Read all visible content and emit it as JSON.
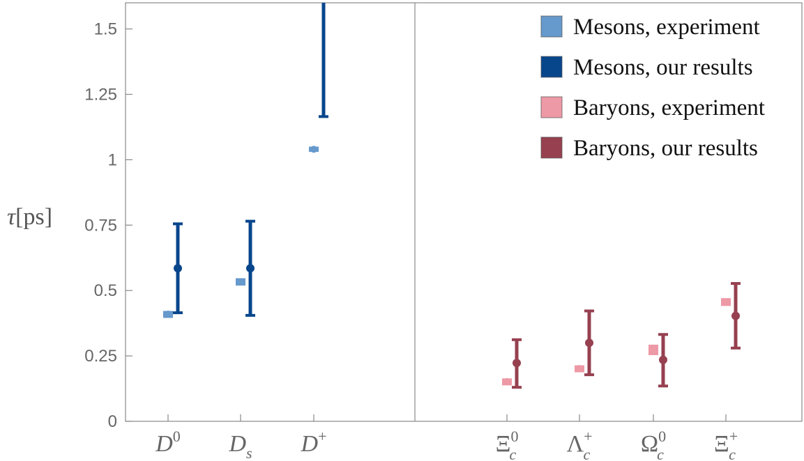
{
  "chart_data": {
    "type": "scatter",
    "ylabel_symbol": "τ",
    "ylabel_unit": "[ps]",
    "ylim": [
      0,
      1.6
    ],
    "yticks": [
      0,
      0.25,
      0.5,
      0.75,
      1,
      1.25,
      1.5
    ],
    "ytick_labels": [
      "0",
      "0.25",
      "0.5",
      "0.75",
      "1",
      "1.25",
      "1.5"
    ],
    "grid": false,
    "legend_position": "top-right",
    "colors": {
      "meson_exp": "#6699cc",
      "meson_ours": "#08468c",
      "baryon_exp": "#ee99a6",
      "baryon_ours": "#964050"
    },
    "categories": [
      {
        "base": "D",
        "sup": "0",
        "sub": "",
        "group": "mesons"
      },
      {
        "base": "D",
        "sup": "",
        "sub": "s",
        "group": "mesons"
      },
      {
        "base": "D",
        "sup": "+",
        "sub": "",
        "group": "mesons"
      },
      {
        "base": "Ξ",
        "sup": "0",
        "sub": "c",
        "group": "baryons"
      },
      {
        "base": "Λ",
        "sup": "+",
        "sub": "c",
        "group": "baryons"
      },
      {
        "base": "Ω",
        "sup": "0",
        "sub": "c",
        "group": "baryons"
      },
      {
        "base": "Ξ",
        "sup": "+",
        "sub": "c",
        "group": "baryons"
      }
    ],
    "series": [
      {
        "name": "Mesons, experiment",
        "kind": "experiment",
        "color_key": "meson_exp",
        "points": [
          {
            "cat": 0,
            "y": 0.41,
            "low": 0.405,
            "high": 0.414
          },
          {
            "cat": 1,
            "y": 0.533,
            "low": 0.527,
            "high": 0.539
          },
          {
            "cat": 2,
            "y": 1.04,
            "low": 1.03,
            "high": 1.05
          }
        ]
      },
      {
        "name": "Mesons, our results",
        "kind": "ours",
        "color_key": "meson_ours",
        "points": [
          {
            "cat": 0,
            "y": 0.585,
            "low": 0.415,
            "high": 0.755
          },
          {
            "cat": 1,
            "y": 0.585,
            "low": 0.405,
            "high": 0.765
          },
          {
            "cat": 2,
            "y": null,
            "low": 1.165,
            "high": 1.62
          }
        ]
      },
      {
        "name": "Baryons, experiment",
        "kind": "experiment",
        "color_key": "baryon_exp",
        "points": [
          {
            "cat": 3,
            "y": 0.152,
            "low": 0.146,
            "high": 0.156
          },
          {
            "cat": 4,
            "y": 0.202,
            "low": 0.198,
            "high": 0.206
          },
          {
            "cat": 5,
            "y": 0.273,
            "low": 0.253,
            "high": 0.293
          },
          {
            "cat": 6,
            "y": 0.456,
            "low": 0.449,
            "high": 0.463
          }
        ]
      },
      {
        "name": "Baryons, our results",
        "kind": "ours",
        "color_key": "baryon_ours",
        "points": [
          {
            "cat": 3,
            "y": 0.223,
            "low": 0.13,
            "high": 0.312
          },
          {
            "cat": 4,
            "y": 0.3,
            "low": 0.178,
            "high": 0.422
          },
          {
            "cat": 5,
            "y": 0.235,
            "low": 0.135,
            "high": 0.332
          },
          {
            "cat": 6,
            "y": 0.403,
            "low": 0.28,
            "high": 0.527
          }
        ]
      }
    ]
  }
}
